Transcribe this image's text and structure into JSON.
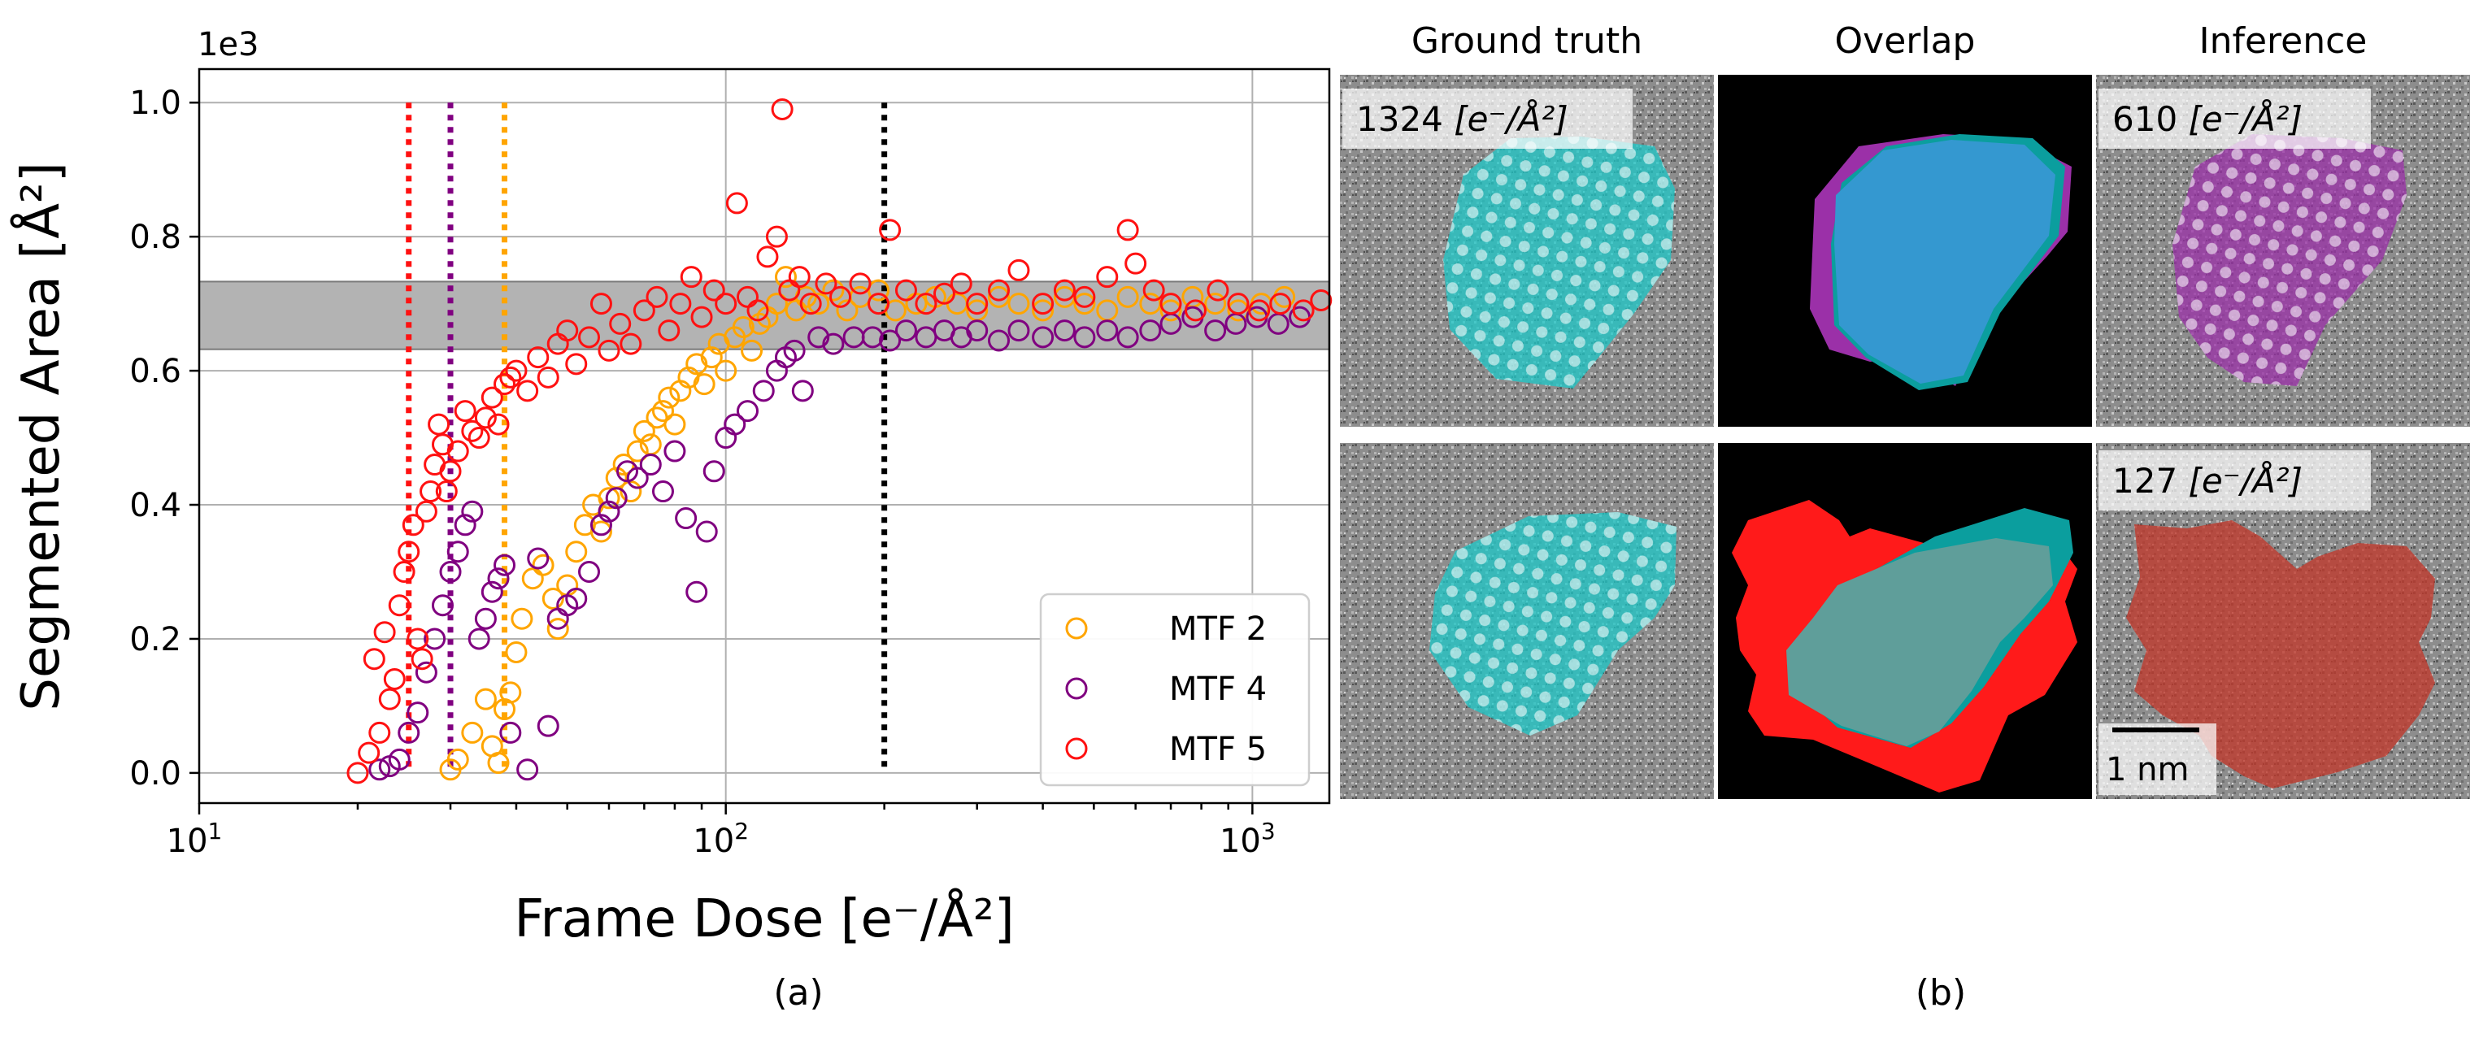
{
  "chart_data": {
    "type": "scatter",
    "xscale": "log",
    "xlim": [
      10,
      1400
    ],
    "ylim": [
      -45,
      1050
    ],
    "ylim_display_scale": "1e3",
    "scale_label": "1e3",
    "xlabel": "Frame Dose [e⁻/Å²]",
    "ylabel": "Segmented Area [Å²]",
    "x_ticks": [
      {
        "value": 10,
        "base": "10",
        "exp": "1"
      },
      {
        "value": 100,
        "base": "10",
        "exp": "2"
      },
      {
        "value": 1000,
        "base": "10",
        "exp": "3"
      }
    ],
    "y_ticks": [
      {
        "value": 0,
        "label": "0.0"
      },
      {
        "value": 200,
        "label": "0.2"
      },
      {
        "value": 400,
        "label": "0.4"
      },
      {
        "value": 600,
        "label": "0.6"
      },
      {
        "value": 800,
        "label": "0.8"
      },
      {
        "value": 1000,
        "label": "1.0"
      }
    ],
    "grid": true,
    "ground_truth_band": {
      "y0": 632,
      "y1": 733,
      "color": "#b3b3b3"
    },
    "vlines": [
      {
        "x": 25,
        "color": "#ff1111"
      },
      {
        "x": 30,
        "color": "#800080"
      },
      {
        "x": 38,
        "color": "#ffa500"
      },
      {
        "x": 200,
        "color": "#000000"
      }
    ],
    "legend_position": "lower-right",
    "series": [
      {
        "name": "MTF 2",
        "color": "#ffa500",
        "points": [
          [
            30,
            5
          ],
          [
            31,
            20
          ],
          [
            33,
            60
          ],
          [
            35,
            110
          ],
          [
            36,
            40
          ],
          [
            37,
            15
          ],
          [
            38,
            95
          ],
          [
            39,
            120
          ],
          [
            40,
            180
          ],
          [
            41,
            230
          ],
          [
            43,
            290
          ],
          [
            45,
            310
          ],
          [
            47,
            260
          ],
          [
            48,
            215
          ],
          [
            50,
            280
          ],
          [
            52,
            330
          ],
          [
            54,
            370
          ],
          [
            56,
            400
          ],
          [
            58,
            360
          ],
          [
            60,
            410
          ],
          [
            62,
            440
          ],
          [
            64,
            460
          ],
          [
            66,
            420
          ],
          [
            68,
            480
          ],
          [
            70,
            510
          ],
          [
            72,
            490
          ],
          [
            74,
            530
          ],
          [
            76,
            540
          ],
          [
            78,
            560
          ],
          [
            80,
            520
          ],
          [
            82,
            570
          ],
          [
            85,
            590
          ],
          [
            88,
            610
          ],
          [
            91,
            580
          ],
          [
            94,
            620
          ],
          [
            97,
            640
          ],
          [
            100,
            600
          ],
          [
            104,
            650
          ],
          [
            108,
            665
          ],
          [
            112,
            630
          ],
          [
            116,
            670
          ],
          [
            120,
            680
          ],
          [
            125,
            700
          ],
          [
            130,
            740
          ],
          [
            136,
            690
          ],
          [
            142,
            710
          ],
          [
            150,
            700
          ],
          [
            160,
            720
          ],
          [
            170,
            690
          ],
          [
            180,
            710
          ],
          [
            195,
            720
          ],
          [
            210,
            690
          ],
          [
            230,
            700
          ],
          [
            250,
            710
          ],
          [
            275,
            700
          ],
          [
            300,
            690
          ],
          [
            330,
            710
          ],
          [
            360,
            700
          ],
          [
            400,
            690
          ],
          [
            440,
            710
          ],
          [
            480,
            700
          ],
          [
            530,
            690
          ],
          [
            580,
            710
          ],
          [
            640,
            700
          ],
          [
            700,
            690
          ],
          [
            770,
            710
          ],
          [
            850,
            700
          ],
          [
            940,
            690
          ],
          [
            1040,
            700
          ],
          [
            1150,
            710
          ]
        ]
      },
      {
        "name": "MTF 4",
        "color": "#800080",
        "points": [
          [
            22,
            5
          ],
          [
            23,
            10
          ],
          [
            24,
            20
          ],
          [
            25,
            60
          ],
          [
            26,
            90
          ],
          [
            27,
            150
          ],
          [
            28,
            200
          ],
          [
            29,
            250
          ],
          [
            30,
            300
          ],
          [
            31,
            330
          ],
          [
            32,
            370
          ],
          [
            33,
            390
          ],
          [
            34,
            200
          ],
          [
            35,
            230
          ],
          [
            36,
            270
          ],
          [
            37,
            290
          ],
          [
            38,
            310
          ],
          [
            39,
            60
          ],
          [
            42,
            5
          ],
          [
            44,
            320
          ],
          [
            46,
            70
          ],
          [
            48,
            230
          ],
          [
            50,
            250
          ],
          [
            52,
            260
          ],
          [
            55,
            300
          ],
          [
            58,
            370
          ],
          [
            60,
            390
          ],
          [
            62,
            410
          ],
          [
            65,
            450
          ],
          [
            68,
            440
          ],
          [
            72,
            460
          ],
          [
            76,
            420
          ],
          [
            80,
            480
          ],
          [
            84,
            380
          ],
          [
            88,
            270
          ],
          [
            92,
            360
          ],
          [
            95,
            450
          ],
          [
            100,
            500
          ],
          [
            104,
            520
          ],
          [
            110,
            540
          ],
          [
            118,
            570
          ],
          [
            125,
            600
          ],
          [
            130,
            620
          ],
          [
            135,
            630
          ],
          [
            140,
            570
          ],
          [
            150,
            650
          ],
          [
            160,
            640
          ],
          [
            175,
            650
          ],
          [
            190,
            650
          ],
          [
            205,
            645
          ],
          [
            220,
            660
          ],
          [
            240,
            650
          ],
          [
            260,
            660
          ],
          [
            280,
            650
          ],
          [
            300,
            660
          ],
          [
            330,
            645
          ],
          [
            360,
            660
          ],
          [
            400,
            650
          ],
          [
            440,
            660
          ],
          [
            480,
            650
          ],
          [
            530,
            660
          ],
          [
            580,
            650
          ],
          [
            640,
            660
          ],
          [
            700,
            670
          ],
          [
            770,
            680
          ],
          [
            850,
            660
          ],
          [
            930,
            670
          ],
          [
            1020,
            680
          ],
          [
            1120,
            670
          ],
          [
            1230,
            680
          ]
        ]
      },
      {
        "name": "MTF 5",
        "color": "#ff1111",
        "points": [
          [
            20,
            0
          ],
          [
            21,
            30
          ],
          [
            21.5,
            170
          ],
          [
            22,
            60
          ],
          [
            22.5,
            210
          ],
          [
            23,
            110
          ],
          [
            23.5,
            140
          ],
          [
            24,
            250
          ],
          [
            24.5,
            300
          ],
          [
            25,
            330
          ],
          [
            25.5,
            370
          ],
          [
            26,
            200
          ],
          [
            26.5,
            170
          ],
          [
            27,
            390
          ],
          [
            27.5,
            420
          ],
          [
            28,
            460
          ],
          [
            28.5,
            520
          ],
          [
            29,
            490
          ],
          [
            29.5,
            420
          ],
          [
            30,
            450
          ],
          [
            31,
            480
          ],
          [
            32,
            540
          ],
          [
            33,
            510
          ],
          [
            34,
            500
          ],
          [
            35,
            530
          ],
          [
            36,
            560
          ],
          [
            37,
            520
          ],
          [
            38,
            580
          ],
          [
            39,
            590
          ],
          [
            40,
            600
          ],
          [
            42,
            570
          ],
          [
            44,
            620
          ],
          [
            46,
            590
          ],
          [
            48,
            640
          ],
          [
            50,
            660
          ],
          [
            52,
            610
          ],
          [
            55,
            650
          ],
          [
            58,
            700
          ],
          [
            60,
            630
          ],
          [
            63,
            670
          ],
          [
            66,
            640
          ],
          [
            70,
            690
          ],
          [
            74,
            710
          ],
          [
            78,
            660
          ],
          [
            82,
            700
          ],
          [
            86,
            740
          ],
          [
            90,
            680
          ],
          [
            95,
            720
          ],
          [
            100,
            700
          ],
          [
            105,
            850
          ],
          [
            110,
            710
          ],
          [
            115,
            690
          ],
          [
            120,
            770
          ],
          [
            125,
            800
          ],
          [
            128,
            990
          ],
          [
            132,
            720
          ],
          [
            138,
            740
          ],
          [
            145,
            700
          ],
          [
            155,
            730
          ],
          [
            165,
            710
          ],
          [
            180,
            730
          ],
          [
            195,
            700
          ],
          [
            205,
            810
          ],
          [
            220,
            720
          ],
          [
            240,
            700
          ],
          [
            260,
            715
          ],
          [
            280,
            730
          ],
          [
            300,
            700
          ],
          [
            330,
            720
          ],
          [
            360,
            750
          ],
          [
            400,
            700
          ],
          [
            440,
            720
          ],
          [
            480,
            710
          ],
          [
            530,
            740
          ],
          [
            580,
            810
          ],
          [
            600,
            760
          ],
          [
            650,
            720
          ],
          [
            700,
            700
          ],
          [
            780,
            690
          ],
          [
            860,
            720
          ],
          [
            940,
            700
          ],
          [
            1030,
            690
          ],
          [
            1130,
            700
          ],
          [
            1250,
            690
          ],
          [
            1350,
            705
          ]
        ]
      }
    ]
  },
  "panel_a_label": "(a)",
  "panel_b_label": "(b)",
  "panel_b": {
    "col_titles": [
      "Ground truth",
      "Overlap",
      "Inference"
    ],
    "dose_labels": {
      "row1_gt": {
        "num": "1324",
        "unit_text": "[e⁻/Å²]"
      },
      "row1_inf": {
        "num": "610",
        "unit_text": "[e⁻/Å²]"
      },
      "row2_inf": {
        "num": "127",
        "unit_text": "[e⁻/Å²]"
      }
    },
    "scale_bar_label": "1 nm",
    "colors": {
      "cyan": "#1ec8c8",
      "purple": "#9b30a8",
      "red": "#c0392b",
      "blue": "#3498d0",
      "overlap_red": "#ff1a1a",
      "teal": "#0b9e9e"
    }
  }
}
